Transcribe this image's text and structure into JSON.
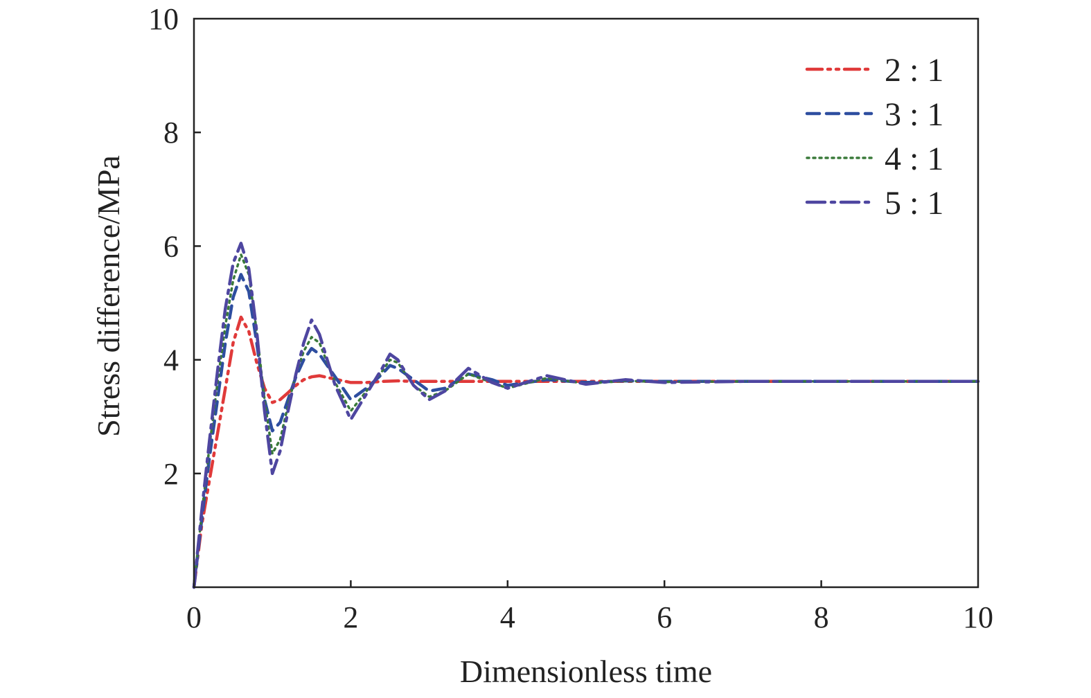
{
  "chart_data": {
    "type": "line",
    "title": "",
    "xlabel": "Dimensionless time",
    "ylabel": "Stress difference/MPa",
    "xlim": [
      0,
      10
    ],
    "ylim": [
      0,
      10
    ],
    "xticks": [
      0,
      2,
      4,
      6,
      8,
      10
    ],
    "yticks": [
      2,
      4,
      6,
      8,
      10
    ],
    "y_origin_label": "0",
    "grid": false,
    "legend_position": "top-right",
    "series": [
      {
        "name": "2 : 1",
        "color": "#e03a3a",
        "dash": "dash-dot-dot",
        "x": [
          0,
          0.1,
          0.2,
          0.3,
          0.4,
          0.5,
          0.6,
          0.7,
          0.8,
          0.9,
          1.0,
          1.1,
          1.2,
          1.3,
          1.4,
          1.5,
          1.6,
          1.8,
          2.0,
          2.2,
          2.4,
          2.6,
          2.8,
          3.0,
          3.5,
          4.0,
          5.0,
          6.0,
          7.0,
          8.0,
          9.0,
          10.0
        ],
        "y": [
          0,
          1.1,
          1.9,
          2.7,
          3.5,
          4.3,
          4.75,
          4.5,
          3.95,
          3.5,
          3.25,
          3.3,
          3.42,
          3.55,
          3.65,
          3.7,
          3.72,
          3.66,
          3.6,
          3.6,
          3.62,
          3.63,
          3.62,
          3.62,
          3.62,
          3.62,
          3.62,
          3.62,
          3.62,
          3.62,
          3.62,
          3.62
        ]
      },
      {
        "name": "3 : 1",
        "color": "#2e4ea0",
        "dash": "dash",
        "x": [
          0,
          0.1,
          0.2,
          0.3,
          0.4,
          0.5,
          0.6,
          0.7,
          0.8,
          0.9,
          1.0,
          1.1,
          1.2,
          1.3,
          1.4,
          1.5,
          1.6,
          1.7,
          1.8,
          2.0,
          2.2,
          2.4,
          2.5,
          2.6,
          2.8,
          3.0,
          3.2,
          3.5,
          3.8,
          4.0,
          4.5,
          5.0,
          5.5,
          6.0,
          7.0,
          8.0,
          9.0,
          10.0
        ],
        "y": [
          0,
          1.2,
          2.3,
          3.3,
          4.3,
          5.1,
          5.5,
          5.2,
          4.3,
          3.3,
          2.75,
          2.9,
          3.3,
          3.7,
          4.0,
          4.2,
          4.1,
          3.9,
          3.7,
          3.3,
          3.5,
          3.75,
          3.9,
          3.85,
          3.65,
          3.45,
          3.5,
          3.75,
          3.65,
          3.55,
          3.65,
          3.6,
          3.63,
          3.62,
          3.62,
          3.62,
          3.62,
          3.62
        ]
      },
      {
        "name": "4 : 1",
        "color": "#3a7a3a",
        "dash": "dot",
        "x": [
          0,
          0.1,
          0.2,
          0.3,
          0.4,
          0.5,
          0.6,
          0.7,
          0.8,
          0.9,
          1.0,
          1.1,
          1.2,
          1.3,
          1.4,
          1.5,
          1.6,
          1.7,
          1.8,
          2.0,
          2.2,
          2.4,
          2.5,
          2.6,
          2.8,
          3.0,
          3.2,
          3.5,
          3.8,
          4.0,
          4.5,
          5.0,
          5.5,
          6.0,
          7.0,
          8.0,
          9.0,
          10.0
        ],
        "y": [
          0,
          1.3,
          2.5,
          3.6,
          4.6,
          5.4,
          5.85,
          5.5,
          4.5,
          3.3,
          2.35,
          2.6,
          3.2,
          3.75,
          4.15,
          4.4,
          4.3,
          3.95,
          3.6,
          3.1,
          3.45,
          3.8,
          4.0,
          3.95,
          3.55,
          3.35,
          3.45,
          3.75,
          3.6,
          3.5,
          3.68,
          3.58,
          3.63,
          3.61,
          3.62,
          3.62,
          3.62,
          3.62
        ]
      },
      {
        "name": "5 : 1",
        "color": "#4e46a0",
        "dash": "dash-dot",
        "x": [
          0,
          0.1,
          0.2,
          0.3,
          0.4,
          0.5,
          0.6,
          0.7,
          0.8,
          0.9,
          1.0,
          1.1,
          1.2,
          1.3,
          1.4,
          1.5,
          1.6,
          1.7,
          1.8,
          2.0,
          2.2,
          2.4,
          2.5,
          2.6,
          2.8,
          3.0,
          3.2,
          3.5,
          3.8,
          4.0,
          4.5,
          5.0,
          5.5,
          6.0,
          7.0,
          8.0,
          9.0,
          10.0
        ],
        "y": [
          0,
          1.35,
          2.6,
          3.8,
          4.9,
          5.7,
          6.05,
          5.6,
          4.5,
          3.1,
          2.0,
          2.4,
          3.1,
          3.75,
          4.3,
          4.7,
          4.45,
          4.0,
          3.55,
          2.95,
          3.4,
          3.85,
          4.1,
          4.0,
          3.55,
          3.3,
          3.45,
          3.85,
          3.6,
          3.5,
          3.72,
          3.57,
          3.65,
          3.6,
          3.62,
          3.62,
          3.62,
          3.62
        ]
      }
    ]
  }
}
